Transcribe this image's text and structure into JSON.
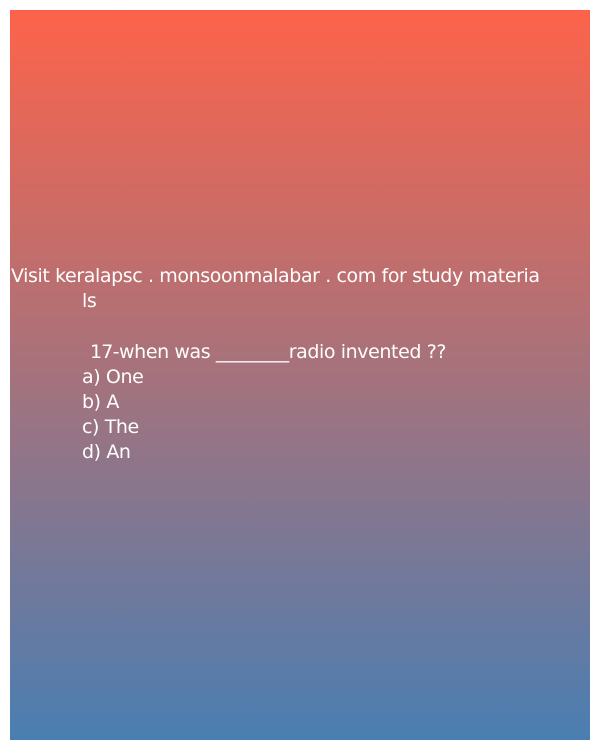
{
  "promo": {
    "line1": "Visit keralapsc . monsoonmalabar . com for study materia",
    "line2": "ls"
  },
  "question": {
    "number": "17",
    "text": "-when was ________radio invented ??"
  },
  "options": [
    "a) One",
    "b) A",
    "c) The",
    "d) An"
  ]
}
